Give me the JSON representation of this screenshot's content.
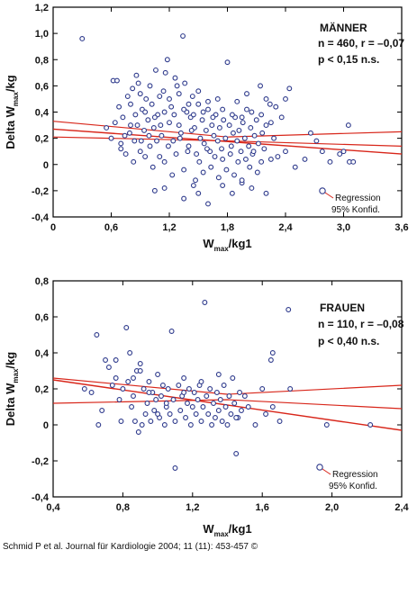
{
  "citation": "Schmid P et al. Journal für Kardiologie 2004; 11 (11): 453-457 ©",
  "colors": {
    "points": "#2e3a8c",
    "lines": "#d8261a",
    "frame": "#000000",
    "background": "#ffffff"
  },
  "chart_data": [
    {
      "type": "scatter",
      "panel_title": "MÄNNER",
      "stats_line1": "n = 460, r = –0,07",
      "stats_line2": "p < 0,15  n.s.",
      "ylabel": "Delta W",
      "ylabel_sub": "max",
      "ylabel_suffix": "/kg",
      "xlabel": "W",
      "xlabel_sub": "max",
      "xlabel_suffix": "/kg1",
      "xlim": [
        0,
        3.6
      ],
      "ylim": [
        -0.4,
        1.2
      ],
      "xticks": [
        0,
        0.6,
        1.2,
        1.8,
        2.4,
        3.0,
        3.6
      ],
      "xtick_labels": [
        "0",
        "0,6",
        "1,2",
        "1,8",
        "2,4",
        "3,0",
        "3,6"
      ],
      "yticks": [
        -0.4,
        -0.2,
        0,
        0.2,
        0.4,
        0.6,
        0.8,
        1.0,
        1.2
      ],
      "ytick_labels": [
        "-0,4",
        "-0,2",
        "0",
        "0,2",
        "0,4",
        "0,6",
        "0,8",
        "1,0",
        "1,2"
      ],
      "regression": {
        "x": [
          0,
          3.6
        ],
        "y": [
          0.27,
          0.08
        ]
      },
      "ci_upper": {
        "x": [
          0,
          1.8,
          3.6
        ],
        "y": [
          0.33,
          0.21,
          0.25
        ]
      },
      "ci_lower": {
        "x": [
          0,
          1.8,
          3.6
        ],
        "y": [
          0.21,
          0.18,
          0.14
        ]
      },
      "legend_regression": "Regression",
      "legend_ci": "95% Konfid.",
      "points_label": "estimated",
      "points": [
        [
          0.3,
          0.96
        ],
        [
          0.62,
          0.64
        ],
        [
          0.66,
          0.64
        ],
        [
          0.55,
          0.28
        ],
        [
          0.6,
          0.2
        ],
        [
          0.64,
          0.32
        ],
        [
          0.68,
          0.44
        ],
        [
          0.7,
          0.12
        ],
        [
          0.72,
          0.36
        ],
        [
          0.74,
          0.22
        ],
        [
          0.77,
          0.52
        ],
        [
          0.8,
          0.3
        ],
        [
          0.82,
          0.58
        ],
        [
          0.84,
          0.18
        ],
        [
          0.86,
          0.68
        ],
        [
          0.88,
          0.62
        ],
        [
          0.9,
          0.1
        ],
        [
          0.92,
          0.42
        ],
        [
          0.94,
          0.26
        ],
        [
          0.96,
          0.5
        ],
        [
          0.98,
          0.34
        ],
        [
          1.0,
          0.14
        ],
        [
          1.02,
          0.46
        ],
        [
          1.04,
          0.28
        ],
        [
          1.06,
          0.72
        ],
        [
          1.08,
          0.38
        ],
        [
          1.1,
          0.06
        ],
        [
          1.12,
          0.22
        ],
        [
          1.14,
          0.56
        ],
        [
          1.16,
          0.7
        ],
        [
          1.18,
          0.8
        ],
        [
          1.2,
          0.32
        ],
        [
          1.22,
          0.44
        ],
        [
          1.24,
          0.18
        ],
        [
          1.26,
          0.66
        ],
        [
          1.28,
          0.6
        ],
        [
          1.3,
          0.3
        ],
        [
          1.32,
          0.24
        ],
        [
          1.34,
          0.98
        ],
        [
          1.36,
          0.62
        ],
        [
          1.38,
          0.4
        ],
        [
          1.4,
          0.14
        ],
        [
          1.42,
          0.36
        ],
        [
          1.44,
          0.52
        ],
        [
          1.46,
          0.28
        ],
        [
          1.48,
          0.08
        ],
        [
          1.5,
          0.46
        ],
        [
          1.52,
          0.2
        ],
        [
          1.54,
          0.34
        ],
        [
          1.56,
          0.16
        ],
        [
          1.58,
          0.26
        ],
        [
          1.6,
          0.42
        ],
        [
          1.62,
          0.1
        ],
        [
          1.64,
          0.3
        ],
        [
          1.66,
          0.22
        ],
        [
          1.68,
          0.38
        ],
        [
          1.7,
          0.18
        ],
        [
          1.72,
          0.28
        ],
        [
          1.74,
          0.12
        ],
        [
          1.76,
          0.34
        ],
        [
          1.78,
          0.2
        ],
        [
          1.8,
          0.78
        ],
        [
          1.82,
          0.3
        ],
        [
          1.84,
          0.14
        ],
        [
          1.86,
          0.24
        ],
        [
          1.88,
          0.36
        ],
        [
          1.9,
          0.18
        ],
        [
          1.92,
          0.26
        ],
        [
          1.94,
          0.1
        ],
        [
          1.96,
          0.32
        ],
        [
          1.98,
          0.2
        ],
        [
          2.0,
          0.42
        ],
        [
          2.02,
          0.14
        ],
        [
          2.04,
          0.28
        ],
        [
          2.06,
          0.08
        ],
        [
          2.08,
          0.22
        ],
        [
          2.1,
          0.34
        ],
        [
          2.12,
          0.16
        ],
        [
          2.14,
          0.6
        ],
        [
          2.16,
          0.24
        ],
        [
          2.18,
          0.12
        ],
        [
          2.2,
          0.3
        ],
        [
          2.24,
          0.46
        ],
        [
          2.28,
          0.2
        ],
        [
          2.32,
          0.06
        ],
        [
          2.36,
          0.36
        ],
        [
          2.4,
          0.1
        ],
        [
          2.44,
          0.58
        ],
        [
          2.5,
          -0.02
        ],
        [
          2.6,
          0.04
        ],
        [
          2.66,
          0.24
        ],
        [
          2.72,
          0.18
        ],
        [
          2.78,
          0.1
        ],
        [
          2.86,
          0.02
        ],
        [
          2.96,
          0.08
        ],
        [
          3.0,
          0.1
        ],
        [
          3.06,
          0.02
        ],
        [
          3.1,
          0.02
        ],
        [
          3.05,
          0.3
        ],
        [
          0.7,
          0.16
        ],
        [
          0.75,
          0.08
        ],
        [
          0.79,
          0.24
        ],
        [
          0.83,
          0.02
        ],
        [
          0.87,
          0.3
        ],
        [
          0.91,
          0.18
        ],
        [
          0.95,
          0.06
        ],
        [
          0.99,
          0.22
        ],
        [
          1.03,
          -0.02
        ],
        [
          1.07,
          0.18
        ],
        [
          1.11,
          0.3
        ],
        [
          1.15,
          0.02
        ],
        [
          1.19,
          0.14
        ],
        [
          1.23,
          -0.08
        ],
        [
          1.27,
          0.08
        ],
        [
          1.31,
          0.2
        ],
        [
          1.35,
          -0.04
        ],
        [
          1.39,
          0.1
        ],
        [
          1.43,
          0.26
        ],
        [
          1.47,
          -0.12
        ],
        [
          1.51,
          0.02
        ],
        [
          1.55,
          -0.06
        ],
        [
          1.59,
          0.12
        ],
        [
          1.63,
          -0.02
        ],
        [
          1.67,
          0.06
        ],
        [
          1.71,
          -0.1
        ],
        [
          1.75,
          0.04
        ],
        [
          1.79,
          -0.04
        ],
        [
          1.83,
          0.08
        ],
        [
          1.87,
          -0.08
        ],
        [
          1.91,
          0.02
        ],
        [
          1.95,
          -0.14
        ],
        [
          1.99,
          0.04
        ],
        [
          2.03,
          -0.02
        ],
        [
          2.07,
          0.1
        ],
        [
          2.11,
          -0.06
        ],
        [
          2.15,
          0.02
        ],
        [
          2.2,
          -0.22
        ],
        [
          2.25,
          0.04
        ],
        [
          1.05,
          -0.2
        ],
        [
          1.15,
          -0.18
        ],
        [
          1.35,
          -0.26
        ],
        [
          1.5,
          -0.22
        ],
        [
          1.6,
          -0.3
        ],
        [
          1.75,
          -0.16
        ],
        [
          1.85,
          -0.22
        ],
        [
          1.95,
          -0.12
        ],
        [
          2.05,
          -0.18
        ],
        [
          1.45,
          -0.16
        ],
        [
          0.8,
          0.46
        ],
        [
          0.9,
          0.54
        ],
        [
          1.0,
          0.6
        ],
        [
          1.1,
          0.52
        ],
        [
          1.2,
          0.5
        ],
        [
          1.3,
          0.54
        ],
        [
          1.4,
          0.46
        ],
        [
          1.5,
          0.56
        ],
        [
          1.6,
          0.48
        ],
        [
          1.7,
          0.5
        ],
        [
          1.9,
          0.48
        ],
        [
          2.0,
          0.54
        ],
        [
          2.2,
          0.5
        ],
        [
          2.3,
          0.44
        ],
        [
          2.4,
          0.5
        ],
        [
          0.85,
          0.38
        ],
        [
          0.95,
          0.4
        ],
        [
          1.05,
          0.36
        ],
        [
          1.15,
          0.4
        ],
        [
          1.25,
          0.38
        ],
        [
          1.35,
          0.42
        ],
        [
          1.45,
          0.38
        ],
        [
          1.55,
          0.4
        ],
        [
          1.65,
          0.36
        ],
        [
          1.75,
          0.42
        ],
        [
          1.85,
          0.38
        ],
        [
          1.95,
          0.36
        ],
        [
          2.05,
          0.4
        ],
        [
          2.15,
          0.38
        ],
        [
          2.25,
          0.32
        ]
      ]
    },
    {
      "type": "scatter",
      "panel_title": "FRAUEN",
      "stats_line1": "n = 110, r = –0,08",
      "stats_line2": "p < 0,40  n.s.",
      "ylabel": "Delta W",
      "ylabel_sub": "max",
      "ylabel_suffix": "/kg",
      "xlabel": "W",
      "xlabel_sub": "max",
      "xlabel_suffix": "/kg1",
      "xlim": [
        0.4,
        2.4
      ],
      "ylim": [
        -0.4,
        0.8
      ],
      "xticks": [
        0.4,
        0.8,
        1.2,
        1.6,
        2.0,
        2.4
      ],
      "xtick_labels": [
        "0,4",
        "0,8",
        "1,2",
        "1,6",
        "2,0",
        "2,4"
      ],
      "yticks": [
        -0.4,
        -0.2,
        0,
        0.2,
        0.4,
        0.6,
        0.8
      ],
      "ytick_labels": [
        "-0,4",
        "-0,2",
        "0",
        "0,2",
        "0,4",
        "0,6",
        "0,8"
      ],
      "regression": {
        "x": [
          0.4,
          2.4
        ],
        "y": [
          0.25,
          -0.03
        ]
      },
      "ci_upper": {
        "x": [
          0.4,
          1.4,
          2.4
        ],
        "y": [
          0.26,
          0.17,
          0.22
        ]
      },
      "ci_lower": {
        "x": [
          0.4,
          1.4,
          2.4
        ],
        "y": [
          0.12,
          0.14,
          0.09
        ]
      },
      "legend_regression": "Regression",
      "legend_ci": "95% Konfid.",
      "points_label": "estimated",
      "points": [
        [
          0.58,
          0.2
        ],
        [
          0.62,
          0.18
        ],
        [
          0.65,
          0.5
        ],
        [
          0.66,
          0.0
        ],
        [
          0.7,
          0.36
        ],
        [
          0.72,
          0.32
        ],
        [
          0.74,
          0.22
        ],
        [
          0.76,
          0.26
        ],
        [
          0.78,
          0.14
        ],
        [
          0.79,
          0.02
        ],
        [
          0.8,
          0.2
        ],
        [
          0.82,
          0.54
        ],
        [
          0.83,
          0.24
        ],
        [
          0.84,
          0.4
        ],
        [
          0.85,
          0.1
        ],
        [
          0.86,
          0.16
        ],
        [
          0.87,
          0.02
        ],
        [
          0.88,
          0.3
        ],
        [
          0.89,
          -0.04
        ],
        [
          0.9,
          0.34
        ],
        [
          0.91,
          0.0
        ],
        [
          0.92,
          0.2
        ],
        [
          0.93,
          0.06
        ],
        [
          0.94,
          0.12
        ],
        [
          0.95,
          0.24
        ],
        [
          0.96,
          0.02
        ],
        [
          0.97,
          0.18
        ],
        [
          0.98,
          0.08
        ],
        [
          0.99,
          0.14
        ],
        [
          1.0,
          0.28
        ],
        [
          1.01,
          0.04
        ],
        [
          1.02,
          0.16
        ],
        [
          1.03,
          0.22
        ],
        [
          1.04,
          0.0
        ],
        [
          1.05,
          0.1
        ],
        [
          1.06,
          0.2
        ],
        [
          1.07,
          0.06
        ],
        [
          1.08,
          0.52
        ],
        [
          1.09,
          0.14
        ],
        [
          1.1,
          0.02
        ],
        [
          1.1,
          -0.24
        ],
        [
          1.12,
          0.22
        ],
        [
          1.13,
          0.08
        ],
        [
          1.14,
          0.16
        ],
        [
          1.15,
          0.26
        ],
        [
          1.16,
          0.04
        ],
        [
          1.17,
          0.12
        ],
        [
          1.18,
          0.2
        ],
        [
          1.19,
          0.0
        ],
        [
          1.2,
          0.1
        ],
        [
          1.21,
          0.18
        ],
        [
          1.22,
          0.06
        ],
        [
          1.23,
          0.14
        ],
        [
          1.24,
          0.22
        ],
        [
          1.25,
          0.02
        ],
        [
          1.26,
          0.1
        ],
        [
          1.27,
          0.68
        ],
        [
          1.28,
          0.16
        ],
        [
          1.29,
          0.06
        ],
        [
          1.3,
          0.2
        ],
        [
          1.31,
          0.0
        ],
        [
          1.32,
          0.12
        ],
        [
          1.33,
          0.04
        ],
        [
          1.34,
          0.18
        ],
        [
          1.35,
          0.08
        ],
        [
          1.36,
          0.14
        ],
        [
          1.37,
          0.02
        ],
        [
          1.38,
          0.22
        ],
        [
          1.39,
          0.1
        ],
        [
          1.4,
          0.0
        ],
        [
          1.41,
          0.16
        ],
        [
          1.42,
          0.06
        ],
        [
          1.43,
          0.26
        ],
        [
          1.44,
          0.12
        ],
        [
          1.45,
          -0.16
        ],
        [
          1.46,
          0.04
        ],
        [
          1.47,
          0.18
        ],
        [
          1.48,
          0.08
        ],
        [
          1.5,
          0.16
        ],
        [
          1.52,
          0.1
        ],
        [
          1.56,
          0.0
        ],
        [
          1.6,
          0.2
        ],
        [
          1.62,
          0.06
        ],
        [
          1.65,
          0.36
        ],
        [
          1.66,
          0.1
        ],
        [
          1.7,
          0.02
        ],
        [
          1.75,
          0.64
        ],
        [
          1.76,
          0.2
        ],
        [
          1.66,
          0.4
        ],
        [
          1.97,
          0.0
        ],
        [
          2.22,
          0.0
        ],
        [
          0.68,
          0.08
        ],
        [
          0.76,
          0.36
        ],
        [
          0.86,
          0.26
        ],
        [
          0.9,
          0.3
        ],
        [
          0.95,
          0.18
        ],
        [
          1.0,
          0.06
        ],
        [
          1.05,
          0.12
        ],
        [
          1.15,
          0.18
        ],
        [
          1.25,
          0.24
        ],
        [
          1.35,
          0.28
        ],
        [
          1.45,
          0.04
        ]
      ]
    }
  ]
}
